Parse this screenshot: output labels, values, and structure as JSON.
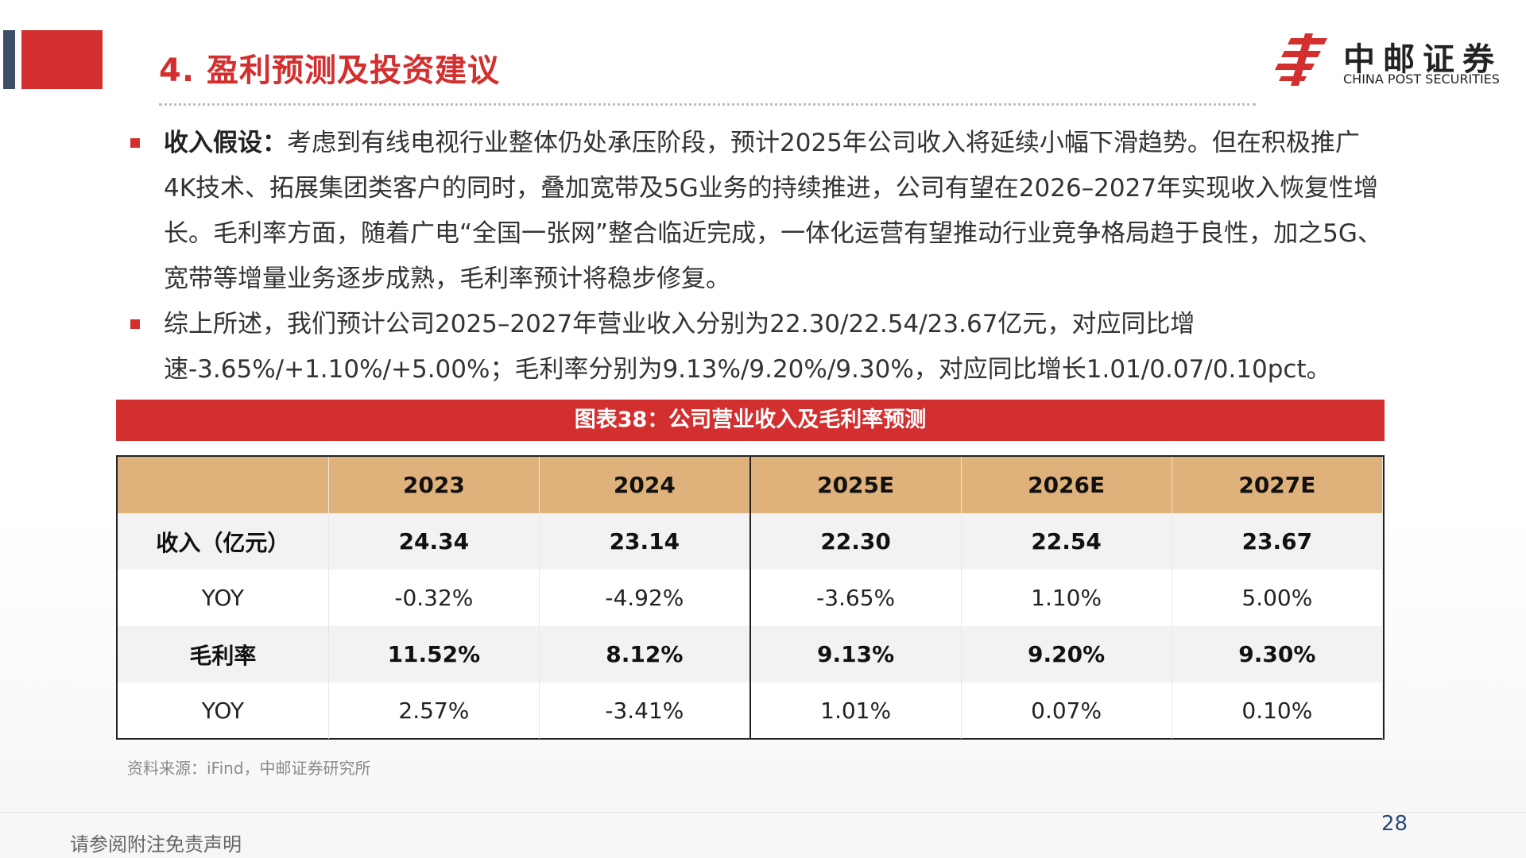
{
  "header": {
    "title": "4. 盈利预测及投资建议",
    "logo_cn": "中邮证券",
    "logo_en": "CHINA POST SECURITIES",
    "brand_color": "#d32f2f",
    "accent_dark": "#3d4f66"
  },
  "bullets": [
    {
      "lead": "收入假设：",
      "text": "考虑到有线电视行业整体仍处承压阶段，预计2025年公司收入将延续小幅下滑趋势。但在积极推广4K技术、拓展集团类客户的同时，叠加宽带及5G业务的持续推进，公司有望在2026–2027年实现收入恢复性增长。毛利率方面，随着广电“全国一张网”整合临近完成，一体化运营有望推动行业竞争格局趋于良性，加之5G、宽带等增量业务逐步成熟，毛利率预计将稳步修复。"
    },
    {
      "lead": "",
      "text": "综上所述，我们预计公司2025–2027年营业收入分别为22.30/22.54/23.67亿元，对应同比增速-3.65%/+1.10%/+5.00%；毛利率分别为9.13%/9.20%/9.30%，对应同比增长1.01/0.07/0.10pct。"
    }
  ],
  "table": {
    "title": "图表38：公司营业收入及毛利率预测",
    "header_color": "#dfb27c",
    "columns": [
      "",
      "2023",
      "2024",
      "2025E",
      "2026E",
      "2027E"
    ],
    "rows": [
      {
        "label": "收入（亿元）",
        "values": [
          "24.34",
          "23.14",
          "22.30",
          "22.54",
          "23.67"
        ]
      },
      {
        "label": "YOY",
        "values": [
          "-0.32%",
          "-4.92%",
          "-3.65%",
          "1.10%",
          "5.00%"
        ]
      },
      {
        "label": "毛利率",
        "values": [
          "11.52%",
          "8.12%",
          "9.13%",
          "9.20%",
          "9.30%"
        ]
      },
      {
        "label": "YOY",
        "values": [
          "2.57%",
          "-3.41%",
          "1.01%",
          "0.07%",
          "0.10%"
        ]
      }
    ]
  },
  "source": "资料来源：iFind，中邮证券研究所",
  "footer": {
    "disclaimer": "请参阅附注免责声明",
    "page_number": "28"
  }
}
